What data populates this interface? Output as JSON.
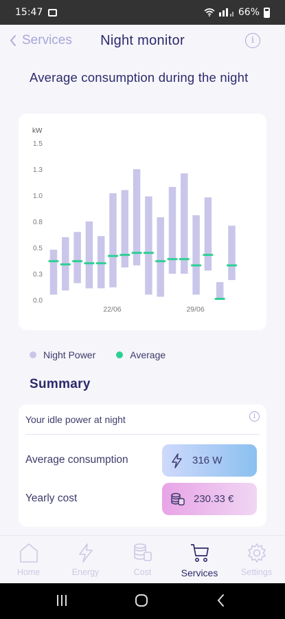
{
  "status_bar": {
    "time": "15:47",
    "battery": "66%"
  },
  "header": {
    "back_label": "Services",
    "title": "Night monitor"
  },
  "section_title": "Average consumption during the night",
  "chart_data": {
    "type": "bar",
    "unit_label": "kW",
    "ylim": [
      0.0,
      1.5
    ],
    "y_ticks": [
      "1.5",
      "1.3",
      "1.0",
      "0.8",
      "0.5",
      "0.3",
      "0.0"
    ],
    "x_tick_labels": [
      {
        "index": 5,
        "label": "22/06"
      },
      {
        "index": 12,
        "label": "29/06"
      }
    ],
    "series": [
      {
        "name": "Night Power",
        "color": "#c9c6ea",
        "ranges": [
          [
            0.05,
            0.48
          ],
          [
            0.09,
            0.6
          ],
          [
            0.16,
            0.65
          ],
          [
            0.11,
            0.75
          ],
          [
            0.11,
            0.61
          ],
          [
            0.12,
            1.02
          ],
          [
            0.31,
            1.05
          ],
          [
            0.33,
            1.25
          ],
          [
            0.05,
            0.99
          ],
          [
            0.03,
            0.79
          ],
          [
            0.25,
            1.08
          ],
          [
            0.25,
            1.21
          ],
          [
            0.05,
            0.81
          ],
          [
            0.28,
            0.98
          ],
          [
            0.0,
            0.17
          ],
          [
            0.19,
            0.71
          ]
        ]
      },
      {
        "name": "Average",
        "color": "#2ecf93",
        "values": [
          0.37,
          0.34,
          0.37,
          0.35,
          0.35,
          0.42,
          0.43,
          0.45,
          0.45,
          0.37,
          0.39,
          0.39,
          0.33,
          0.43,
          0.01,
          0.33
        ]
      }
    ]
  },
  "legend": {
    "night_power": "Night Power",
    "average": "Average"
  },
  "summary": {
    "title": "Summary",
    "idle_label": "Your idle power at night",
    "avg_label": "Average consumption",
    "avg_value": "316 W",
    "yearly_label": "Yearly cost",
    "yearly_value": "230.33 €"
  },
  "nav": {
    "home": "Home",
    "energy": "Energy",
    "cost": "Cost",
    "services": "Services",
    "settings": "Settings"
  }
}
